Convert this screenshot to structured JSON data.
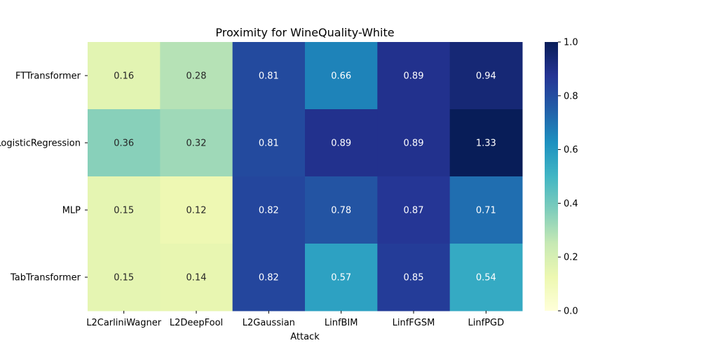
{
  "chart_data": {
    "type": "heatmap",
    "title": "Proximity for WineQuality-White",
    "xlabel": "Attack",
    "ylabel": "",
    "x_categories": [
      "L2CarliniWagner",
      "L2DeepFool",
      "L2Gaussian",
      "LinfBIM",
      "LinfFGSM",
      "LinfPGD"
    ],
    "y_categories": [
      "FTTransformer",
      "LogisticRegression",
      "MLP",
      "TabTransformer"
    ],
    "values": [
      [
        0.16,
        0.28,
        0.81,
        0.66,
        0.89,
        0.94
      ],
      [
        0.36,
        0.32,
        0.81,
        0.89,
        0.89,
        1.33
      ],
      [
        0.15,
        0.12,
        0.82,
        0.78,
        0.87,
        0.71
      ],
      [
        0.15,
        0.14,
        0.82,
        0.57,
        0.85,
        0.54
      ]
    ],
    "value_labels": [
      [
        "0.16",
        "0.28",
        "0.81",
        "0.66",
        "0.89",
        "0.94"
      ],
      [
        "0.36",
        "0.32",
        "0.81",
        "0.89",
        "0.89",
        "1.33"
      ],
      [
        "0.15",
        "0.12",
        "0.82",
        "0.78",
        "0.87",
        "0.71"
      ],
      [
        "0.15",
        "0.14",
        "0.82",
        "0.57",
        "0.85",
        "0.54"
      ]
    ],
    "colorbar": {
      "range": [
        0.0,
        1.0
      ],
      "ticks": [
        "0.0",
        "0.2",
        "0.4",
        "0.6",
        "0.8",
        "1.0"
      ],
      "colormap": "YlGnBu"
    }
  }
}
